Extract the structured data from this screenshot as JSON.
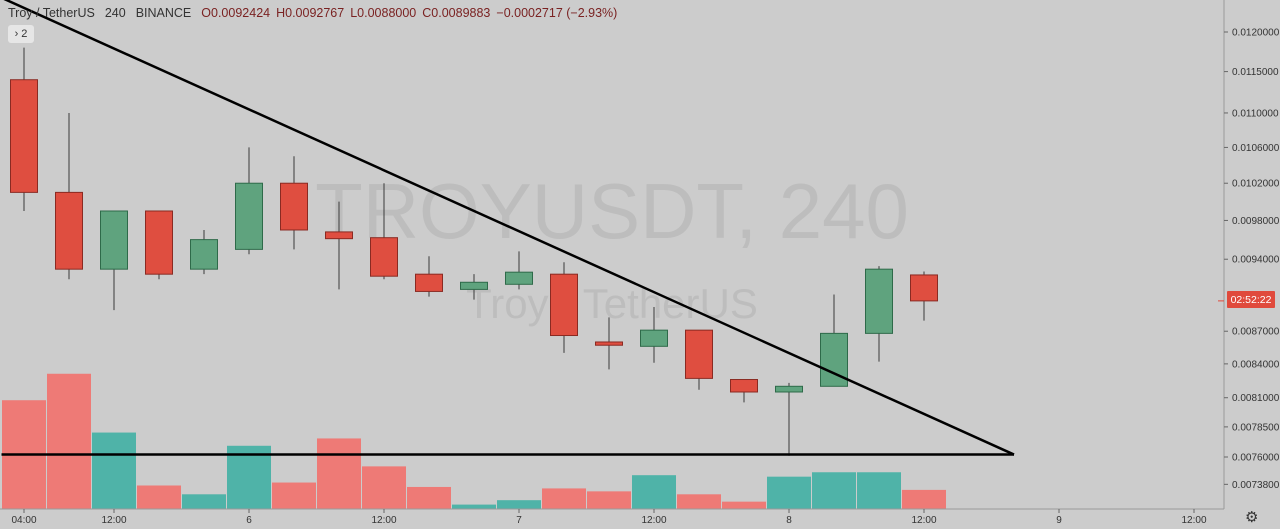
{
  "legend": {
    "symbol": "Troy / TetherUS",
    "interval": "240",
    "exchange": "BINANCE",
    "open": "O0.0092424",
    "high": "H0.0092767",
    "low": "L0.0088000",
    "close": "C0.0089883",
    "change": "−0.0002717 (−2.93%)",
    "indicator_toggle": "› 2"
  },
  "watermark": {
    "symbol": "TROYUSDT, 240",
    "description": "Troy / TetherUS"
  },
  "price_label": "02:52:22",
  "colors": {
    "up": "#5fa37e",
    "down": "#df4e40",
    "vol_up": "#4fb3a8",
    "vol_down": "#ee7a76",
    "background": "#cccccc",
    "trendline": "#000000",
    "price_tag": "#e04a3c"
  },
  "settings_icon": "gear-icon",
  "chart_data": {
    "type": "candlestick",
    "y_axis": {
      "ticks": [
        0.012,
        0.0115,
        0.011,
        0.0106,
        0.0102,
        0.0098,
        0.0094,
        0.0087,
        0.0084,
        0.0081,
        0.00785,
        0.0076,
        0.00738
      ],
      "tick_labels": [
        "0.0120000",
        "0.0115000",
        "0.0110000",
        "0.0106000",
        "0.0102000",
        "0.0098000",
        "0.0094000",
        "0.0087000",
        "0.0084000",
        "0.0081000",
        "0.0078500",
        "0.0076000",
        "0.0073800"
      ],
      "scale": "log"
    },
    "x_axis": {
      "tick_labels": [
        "04:00",
        "12:00",
        "6",
        "12:00",
        "7",
        "12:00",
        "8",
        "12:00",
        "9",
        "12:00"
      ],
      "tick_bar_index": [
        0,
        2,
        5,
        8,
        11,
        14,
        17,
        20,
        23,
        26
      ]
    },
    "candles": [
      {
        "o": 0.0114,
        "h": 0.0118,
        "l": 0.0099,
        "c": 0.0101
      },
      {
        "o": 0.0101,
        "h": 0.011,
        "l": 0.0092,
        "c": 0.0093
      },
      {
        "o": 0.0093,
        "h": 0.0099,
        "l": 0.0089,
        "c": 0.0099
      },
      {
        "o": 0.0099,
        "h": 0.0099,
        "l": 0.0092,
        "c": 0.00925
      },
      {
        "o": 0.0093,
        "h": 0.0097,
        "l": 0.00925,
        "c": 0.0096
      },
      {
        "o": 0.0095,
        "h": 0.0106,
        "l": 0.00945,
        "c": 0.0102
      },
      {
        "o": 0.0102,
        "h": 0.0105,
        "l": 0.0095,
        "c": 0.0097
      },
      {
        "o": 0.00968,
        "h": 0.01,
        "l": 0.0091,
        "c": 0.00961
      },
      {
        "o": 0.00962,
        "h": 0.0102,
        "l": 0.0092,
        "c": 0.00923
      },
      {
        "o": 0.00925,
        "h": 0.00943,
        "l": 0.00903,
        "c": 0.00908
      },
      {
        "o": 0.0091,
        "h": 0.00925,
        "l": 0.009,
        "c": 0.00917
      },
      {
        "o": 0.00915,
        "h": 0.00948,
        "l": 0.0091,
        "c": 0.00927
      },
      {
        "o": 0.00925,
        "h": 0.00937,
        "l": 0.0085,
        "c": 0.00866
      },
      {
        "o": 0.0086,
        "h": 0.00883,
        "l": 0.00835,
        "c": 0.00857
      },
      {
        "o": 0.00856,
        "h": 0.00893,
        "l": 0.00841,
        "c": 0.00871
      },
      {
        "o": 0.00871,
        "h": 0.00871,
        "l": 0.00817,
        "c": 0.00827
      },
      {
        "o": 0.00826,
        "h": 0.00826,
        "l": 0.00806,
        "c": 0.00815
      },
      {
        "o": 0.00815,
        "h": 0.00823,
        "l": 0.00761,
        "c": 0.0082
      },
      {
        "o": 0.0082,
        "h": 0.00905,
        "l": 0.0082,
        "c": 0.00868
      },
      {
        "o": 0.00868,
        "h": 0.00933,
        "l": 0.00842,
        "c": 0.0093
      },
      {
        "o": 0.0092424,
        "h": 0.0092767,
        "l": 0.0088,
        "c": 0.0089883
      }
    ],
    "volume_relative": [
      0.74,
      0.92,
      0.52,
      0.16,
      0.1,
      0.43,
      0.18,
      0.48,
      0.29,
      0.15,
      0.03,
      0.06,
      0.14,
      0.12,
      0.23,
      0.1,
      0.05,
      0.22,
      0.25,
      0.25,
      0.13
    ],
    "trendlines": [
      {
        "from_bar": -0.5,
        "from_price": 0.01245,
        "to_bar": 22,
        "to_price": 0.00762
      },
      {
        "from_bar": -0.5,
        "from_price": 0.00762,
        "to_bar": 22,
        "to_price": 0.00762
      }
    ],
    "last_price": 0.0089883
  }
}
